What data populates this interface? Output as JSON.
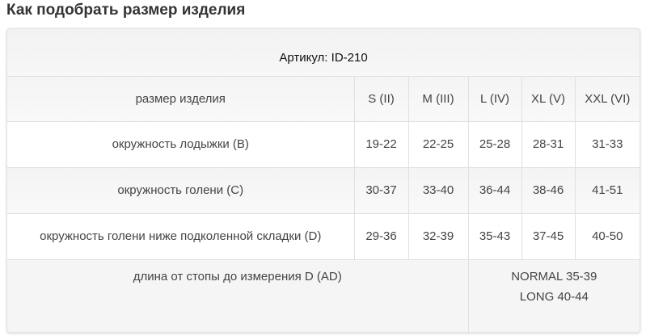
{
  "page_title": "Как подобрать размер изделия",
  "table": {
    "article": "Артикул: ID-210",
    "header": [
      "размер изделия",
      "S (II)",
      "M (III)",
      "L (IV)",
      "XL (V)",
      "XXL (VI)"
    ],
    "rows": [
      [
        "окружность лодыжки (B)",
        "19-22",
        "22-25",
        "25-28",
        "28-31",
        "31-33"
      ],
      [
        "окружность голени (C)",
        "30-37",
        "33-40",
        "36-44",
        "38-46",
        "41-51"
      ],
      [
        "окружность голени ниже подколенной складки (D)",
        "29-36",
        "32-39",
        "35-43",
        "37-45",
        "40-50"
      ]
    ],
    "length_row": {
      "label": "длина от стопы до измерения D (AD)",
      "values": [
        "NORMAL 35-39",
        "LONG 40-44"
      ]
    }
  }
}
